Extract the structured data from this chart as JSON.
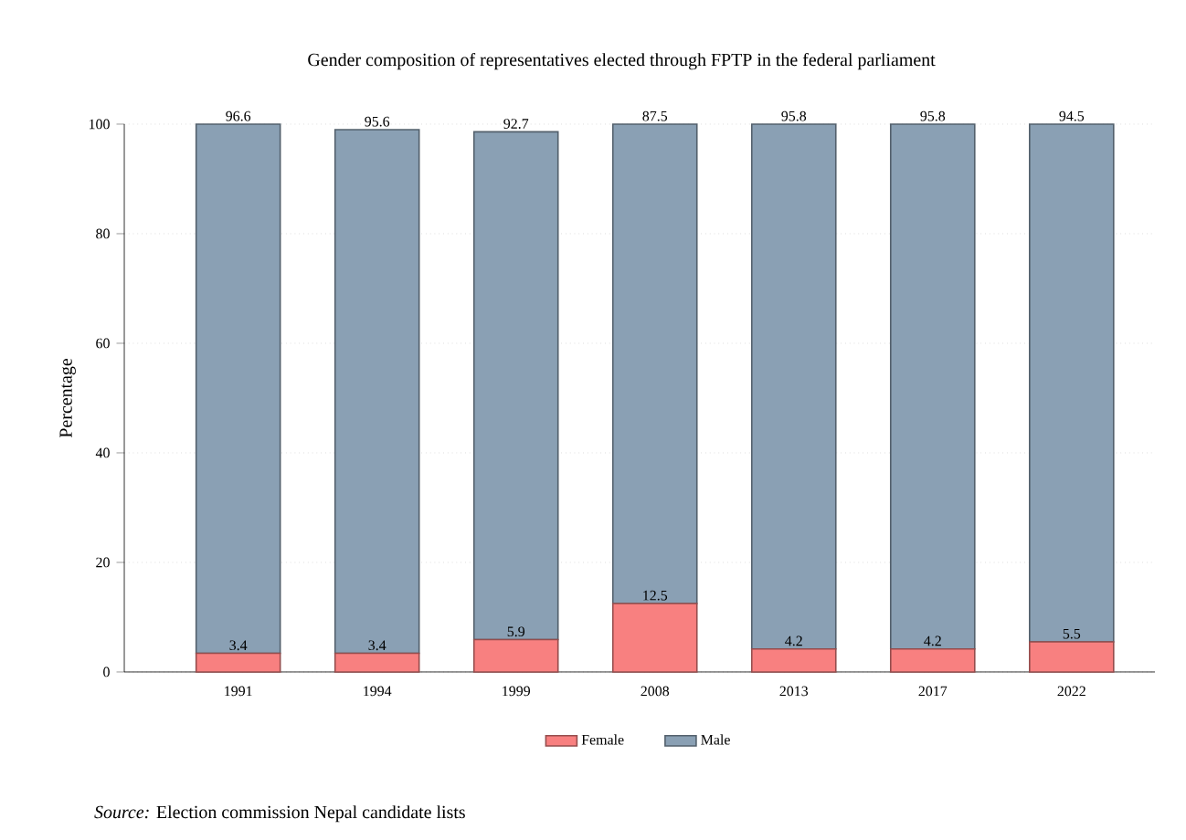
{
  "chart_data": {
    "type": "bar",
    "stacked": true,
    "title": "Gender composition of representatives elected through FPTP in the federal parliament",
    "ylabel": "Percentage",
    "categories": [
      "1991",
      "1994",
      "1999",
      "2008",
      "2013",
      "2017",
      "2022"
    ],
    "series": [
      {
        "name": "Female",
        "color": "#f88080",
        "values": [
          3.4,
          3.4,
          5.9,
          12.5,
          4.2,
          4.2,
          5.5
        ]
      },
      {
        "name": "Male",
        "color": "#8aa0b4",
        "values": [
          96.6,
          95.6,
          92.7,
          87.5,
          95.8,
          95.8,
          94.5
        ]
      }
    ],
    "ylim": [
      0,
      100
    ],
    "yticks": [
      0,
      20,
      40,
      60,
      80,
      100
    ],
    "grid": "y",
    "legend": "bottom",
    "data_labels": true,
    "annotations": [
      "*Source:* Election commission Nepal candidate lists"
    ]
  }
}
